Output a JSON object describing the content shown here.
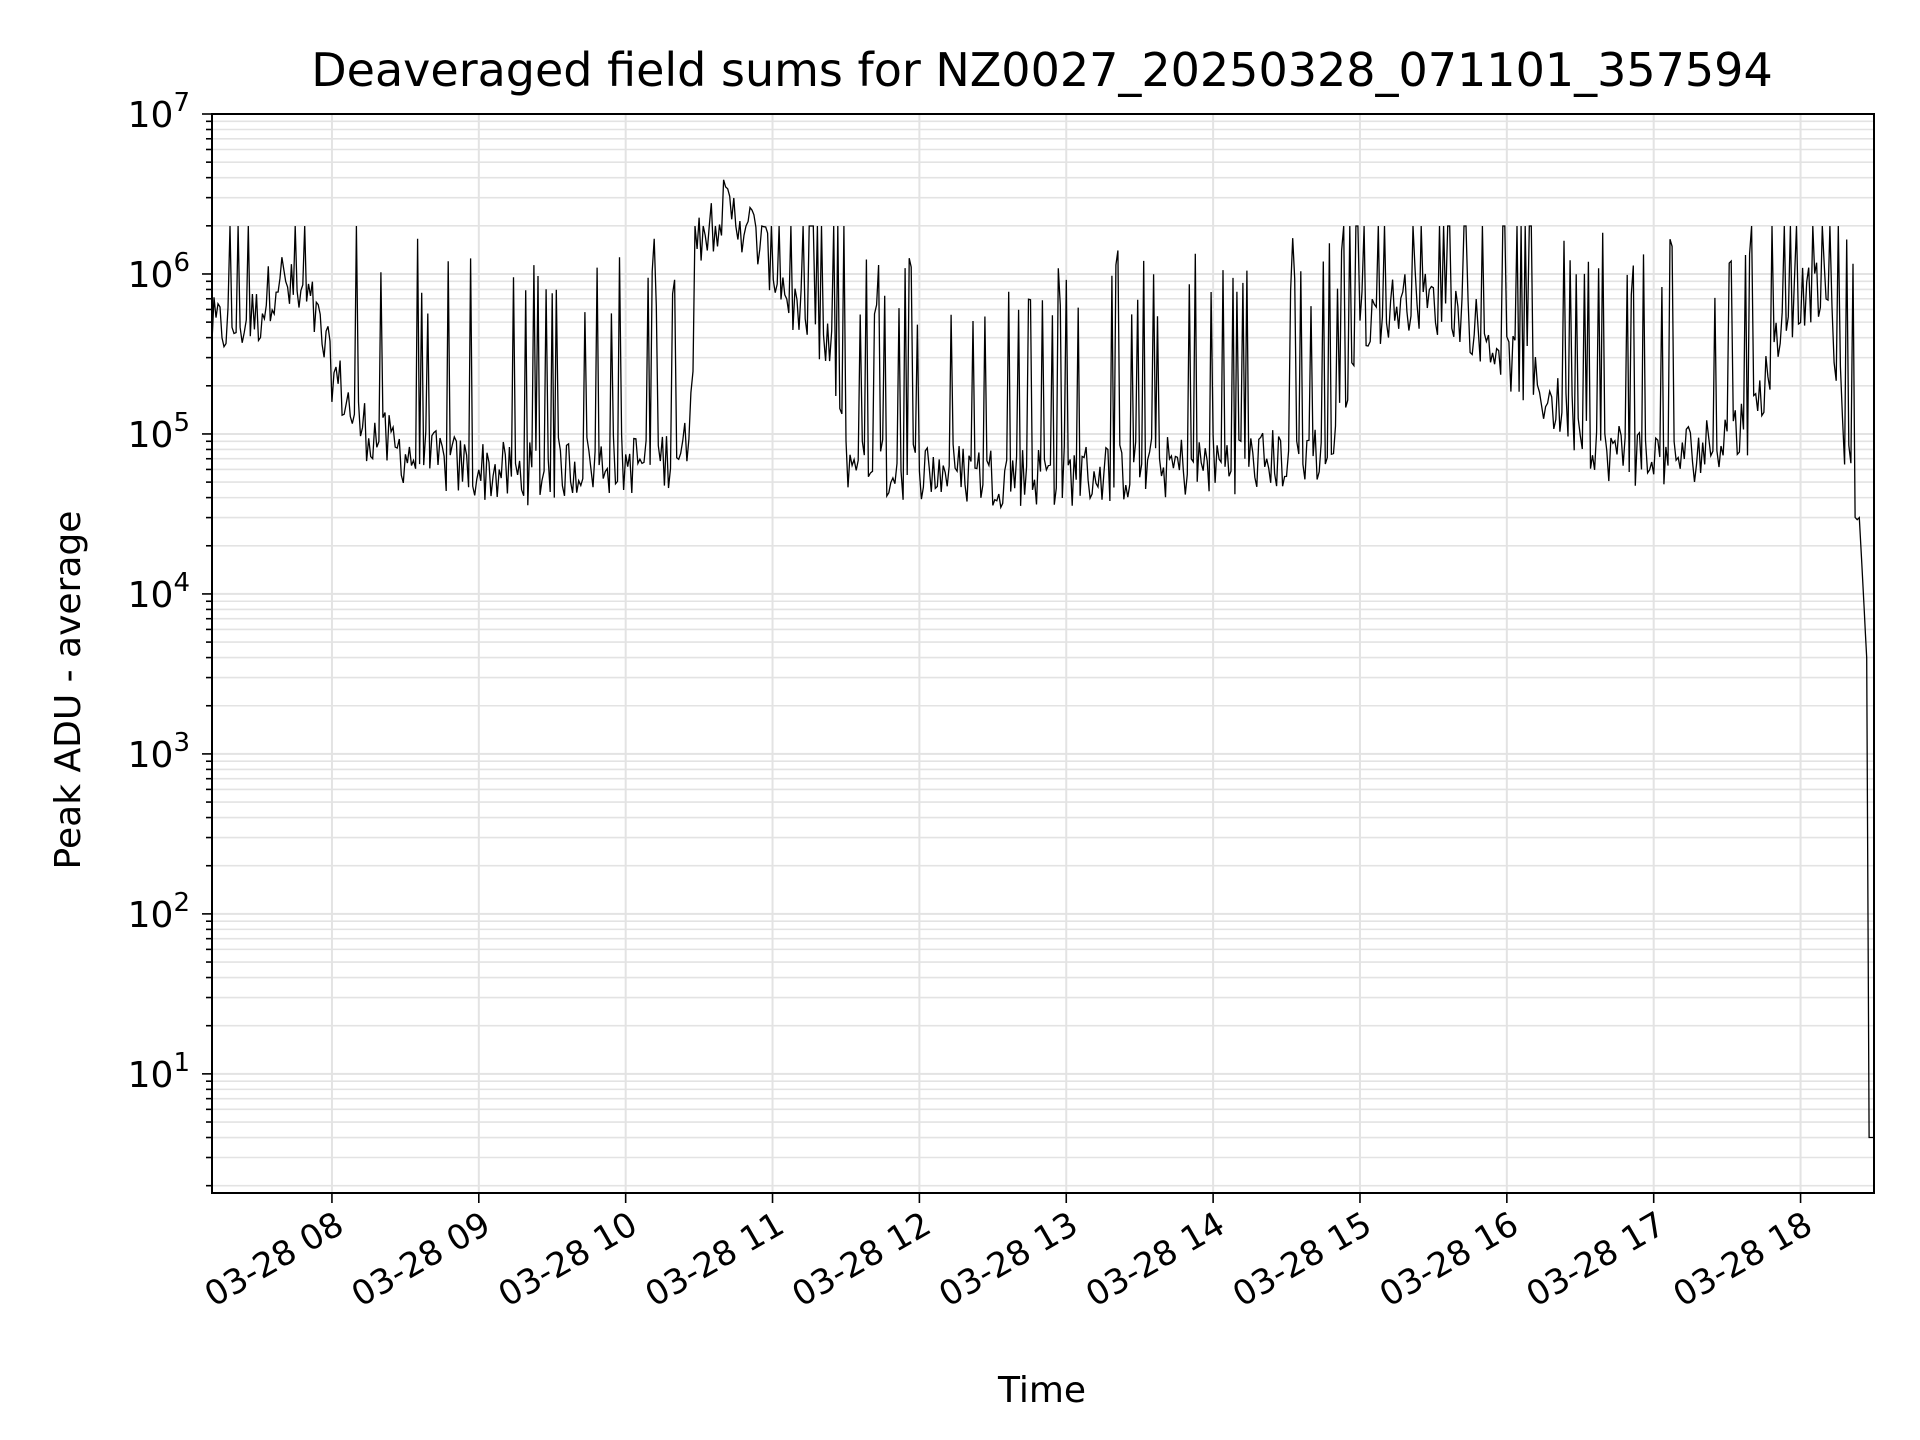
{
  "chart_data": {
    "type": "line",
    "title": "Deaveraged field sums for NZ0027_20250328_071101_357594",
    "xlabel": "Time",
    "ylabel": "Peak ADU - average",
    "y_scale": "log",
    "ylim": [
      1.8,
      10000000
    ],
    "y_tick_exponents": [
      "7",
      "6",
      "5",
      "4",
      "3",
      "2",
      "1"
    ],
    "y_tick_base": "10",
    "xlim": [
      "2025-03-28 07:11",
      "2025-03-28 18:30"
    ],
    "x_ticks": [
      {
        "label": "03-28 08",
        "time": "2025-03-28 08:00"
      },
      {
        "label": "03-28 09",
        "time": "2025-03-28 09:00"
      },
      {
        "label": "03-28 10",
        "time": "2025-03-28 10:00"
      },
      {
        "label": "03-28 11",
        "time": "2025-03-28 11:00"
      },
      {
        "label": "03-28 12",
        "time": "2025-03-28 12:00"
      },
      {
        "label": "03-28 13",
        "time": "2025-03-28 13:00"
      },
      {
        "label": "03-28 14",
        "time": "2025-03-28 14:00"
      },
      {
        "label": "03-28 15",
        "time": "2025-03-28 15:00"
      },
      {
        "label": "03-28 16",
        "time": "2025-03-28 16:00"
      },
      {
        "label": "03-28 17",
        "time": "2025-03-28 17:00"
      },
      {
        "label": "03-28 18",
        "time": "2025-03-28 18:00"
      }
    ],
    "grid": true,
    "line_color": "#000000",
    "grid_color": "#e3e3e3",
    "series": [
      {
        "x": [
          "2025-03-28 07:11",
          "2025-03-28 07:20",
          "2025-03-28 07:30",
          "2025-03-28 07:38",
          "2025-03-28 07:45",
          "2025-03-28 07:52",
          "2025-03-28 08:00",
          "2025-03-28 08:10",
          "2025-03-28 08:20",
          "2025-03-28 08:30",
          "2025-03-28 08:45",
          "2025-03-28 09:00",
          "2025-03-28 09:15",
          "2025-03-28 09:30",
          "2025-03-28 09:45",
          "2025-03-28 10:00",
          "2025-03-28 10:15",
          "2025-03-28 10:25",
          "2025-03-28 10:30",
          "2025-03-28 10:40",
          "2025-03-28 10:50",
          "2025-03-28 10:58",
          "2025-03-28 11:05",
          "2025-03-28 11:15",
          "2025-03-28 11:25",
          "2025-03-28 11:30",
          "2025-03-28 11:45",
          "2025-03-28 12:00",
          "2025-03-28 12:30",
          "2025-03-28 13:00",
          "2025-03-28 13:30",
          "2025-03-28 14:00",
          "2025-03-28 14:30",
          "2025-03-28 14:50",
          "2025-03-28 15:00",
          "2025-03-28 15:20",
          "2025-03-28 15:40",
          "2025-03-28 16:00",
          "2025-03-28 16:20",
          "2025-03-28 16:40",
          "2025-03-28 17:00",
          "2025-03-28 17:20",
          "2025-03-28 17:40",
          "2025-03-28 17:55",
          "2025-03-28 18:05",
          "2025-03-28 18:12",
          "2025-03-28 18:18",
          "2025-03-28 18:24",
          "2025-03-28 18:26",
          "2025-03-28 18:27",
          "2025-03-28 18:28",
          "2025-03-28 18:30"
        ],
        "y": [
          450000,
          480000,
          550000,
          1000000,
          700000,
          600000,
          250000,
          120000,
          90000,
          75000,
          65000,
          60000,
          55000,
          60000,
          65000,
          65000,
          70000,
          80000,
          1800000,
          2500000,
          2000000,
          1300000,
          800000,
          400000,
          300000,
          70000,
          60000,
          60000,
          55000,
          55000,
          60000,
          65000,
          70000,
          80000,
          500000,
          700000,
          600000,
          300000,
          150000,
          80000,
          70000,
          80000,
          120000,
          600000,
          800000,
          700000,
          100000,
          30000,
          8000,
          4000,
          4,
          4
        ]
      }
    ]
  }
}
